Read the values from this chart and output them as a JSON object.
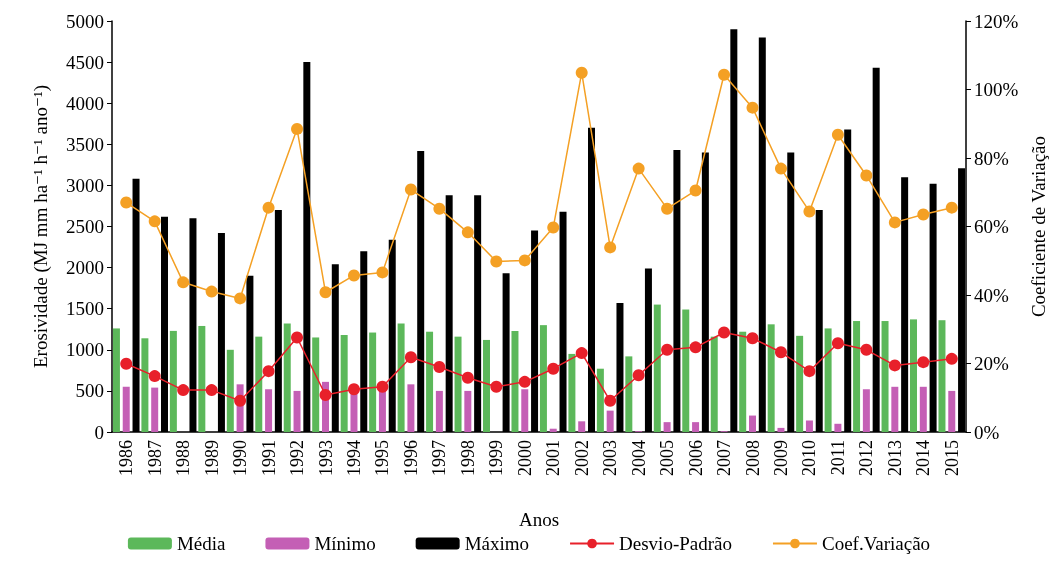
{
  "chart_data": {
    "type": "bar",
    "xlabel": "Anos",
    "ylabel": "Erosividade (MJ mm ha⁻¹ h⁻¹ ano⁻¹)",
    "y2label": "Coeficiente de Variação",
    "categories": [
      "1986",
      "1987",
      "1988",
      "1989",
      "1990",
      "1991",
      "1992",
      "1993",
      "1994",
      "1995",
      "1996",
      "1997",
      "1998",
      "1999",
      "2000",
      "2001",
      "2002",
      "2003",
      "2004",
      "2005",
      "2006",
      "2007",
      "2008",
      "2009",
      "2010",
      "2011",
      "2012",
      "2013",
      "2014",
      "2015"
    ],
    "series": [
      {
        "name": "Média",
        "color": "#5cb85a",
        "values": [
          1260,
          1140,
          1230,
          1290,
          1000,
          1160,
          1320,
          1150,
          1180,
          1210,
          1320,
          1220,
          1160,
          1120,
          1230,
          1300,
          950,
          770,
          920,
          1550,
          1490,
          1160,
          1220,
          1310,
          1170,
          1260,
          1350,
          1350,
          1370,
          1360
        ]
      },
      {
        "name": "Mínimo",
        "color": "#c45fb5",
        "values": [
          550,
          540,
          null,
          null,
          580,
          520,
          500,
          610,
          500,
          500,
          580,
          500,
          500,
          null,
          520,
          40,
          130,
          260,
          10,
          120,
          120,
          10,
          200,
          50,
          140,
          100,
          520,
          550,
          550,
          500
        ]
      },
      {
        "name": "Máximo",
        "color": "#000000",
        "values": [
          3080,
          2620,
          2600,
          2420,
          1900,
          2700,
          4500,
          2040,
          2200,
          2340,
          3420,
          2880,
          2880,
          1930,
          2450,
          2680,
          3700,
          1570,
          1990,
          3430,
          3400,
          4900,
          4800,
          3400,
          2700,
          3680,
          4430,
          3100,
          3020,
          3210
        ]
      },
      {
        "name": "Desvio-Padrão",
        "type": "line",
        "color": "#e8202a",
        "values": [
          830,
          680,
          510,
          510,
          380,
          740,
          1150,
          450,
          520,
          550,
          910,
          790,
          660,
          550,
          610,
          770,
          960,
          380,
          690,
          1000,
          1030,
          1210,
          1140,
          970,
          740,
          1080,
          1000,
          810,
          850,
          890
        ]
      },
      {
        "name": "Coef.Variação",
        "type": "line",
        "axis": "y2",
        "color": "#f4a024",
        "values": [
          67,
          61.5,
          43.7,
          41,
          39,
          65.5,
          88.5,
          40.8,
          45.7,
          46.6,
          70.8,
          65.2,
          58.3,
          49.8,
          50.1,
          59.7,
          104.9,
          53.9,
          76.9,
          65.2,
          70.5,
          104.3,
          94.7,
          76.9,
          64.4,
          86.8,
          74.9,
          61.2,
          63.5,
          65.5
        ]
      }
    ],
    "ylim": [
      0,
      5000
    ],
    "yticks": [
      0,
      500,
      1000,
      1500,
      2000,
      2500,
      3000,
      3500,
      4000,
      4500,
      5000
    ],
    "y2lim": [
      0,
      120
    ],
    "y2ticks": [
      {
        "value": 0,
        "label": "0%"
      },
      {
        "value": 20,
        "label": "20%"
      },
      {
        "value": 40,
        "label": "40%"
      },
      {
        "value": 60,
        "label": "60%"
      },
      {
        "value": 80,
        "label": "80%"
      },
      {
        "value": 100,
        "label": "100%"
      },
      {
        "value": 120,
        "label": "120%"
      }
    ],
    "grid": false,
    "legend": "bottom",
    "marker": "circle",
    "line_style": "solid"
  }
}
